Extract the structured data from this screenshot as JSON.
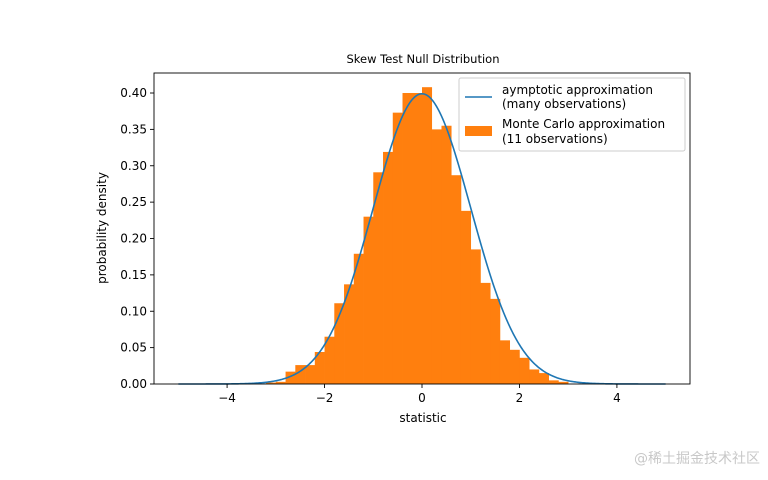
{
  "chart_data": {
    "type": "bar",
    "title": "Skew Test Null Distribution",
    "xlabel": "statistic",
    "ylabel": "probability density",
    "xlim": [
      -5.5,
      5.5
    ],
    "ylim": [
      0,
      0.4275
    ],
    "xticks": [
      -4,
      -2,
      0,
      2,
      4
    ],
    "xtick_labels": [
      "−4",
      "−2",
      "0",
      "2",
      "4"
    ],
    "yticks": [
      0,
      0.05,
      0.1,
      0.15,
      0.2,
      0.25,
      0.3,
      0.35,
      0.4
    ],
    "ytick_labels": [
      "0.00",
      "0.05",
      "0.10",
      "0.15",
      "0.20",
      "0.25",
      "0.30",
      "0.35",
      "0.40"
    ],
    "grid": false,
    "legend_position": "top-right",
    "series": [
      {
        "name": "aymptotic approximation\n(many observations)",
        "legend_lines": [
          "aymptotic approximation",
          "(many observations)"
        ],
        "type": "line",
        "function": "standard normal pdf",
        "x_range": [
          -5,
          5
        ],
        "color": "#1f77b4"
      },
      {
        "name": "Monte Carlo approximation\n(11 observations)",
        "legend_lines": [
          "Monte Carlo approximation",
          "(11 observations)"
        ],
        "type": "histogram",
        "color": "#ff7f0e",
        "bin_width": 0.2,
        "bin_left_edges": [
          -3.2,
          -3.0,
          -2.8,
          -2.6,
          -2.4,
          -2.2,
          -2.0,
          -1.8,
          -1.6,
          -1.4,
          -1.2,
          -1.0,
          -0.8,
          -0.6,
          -0.4,
          -0.2,
          0.0,
          0.2,
          0.4,
          0.6,
          0.8,
          1.0,
          1.2,
          1.4,
          1.6,
          1.8,
          2.0,
          2.2,
          2.4,
          2.6,
          2.8
        ],
        "density": [
          0.002,
          0.003,
          0.017,
          0.026,
          0.026,
          0.044,
          0.065,
          0.111,
          0.137,
          0.179,
          0.23,
          0.291,
          0.319,
          0.373,
          0.4,
          0.4,
          0.408,
          0.35,
          0.355,
          0.287,
          0.238,
          0.185,
          0.139,
          0.117,
          0.06,
          0.047,
          0.036,
          0.02,
          0.015,
          0.005,
          0.003
        ]
      }
    ]
  },
  "watermark": "@稀土掘金技术社区"
}
